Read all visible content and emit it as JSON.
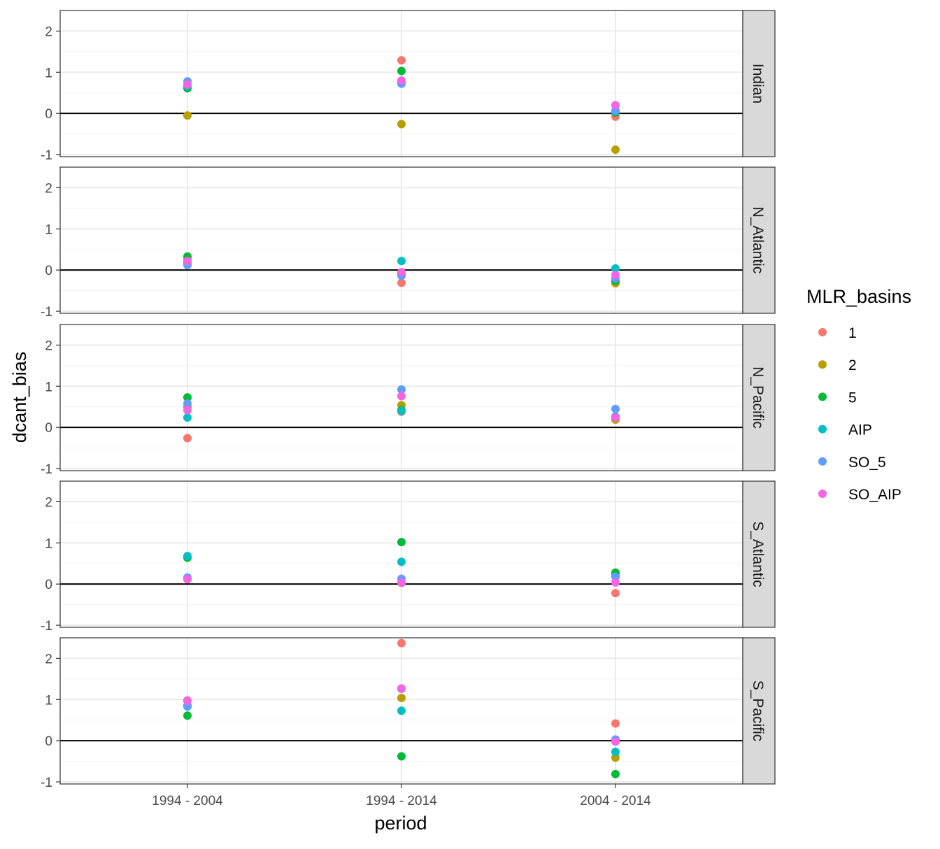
{
  "chart_data": {
    "type": "scatter",
    "xlabel": "period",
    "ylabel": "dcant_bias",
    "categories": [
      "1994 - 2004",
      "1994 - 2014",
      "2004 - 2014"
    ],
    "ylim": [
      -1,
      2.5
    ],
    "y_ticks": [
      -1,
      0,
      1,
      2
    ],
    "y_tick_labels": [
      "-1",
      "0",
      "1",
      "2"
    ],
    "reference_line_y": 0,
    "grid": true,
    "legend": {
      "title": "MLR_basins",
      "position": "right",
      "entries": [
        "1",
        "2",
        "5",
        "AIP",
        "SO_5",
        "SO_AIP"
      ]
    },
    "colors": {
      "1": "#F8766D",
      "2": "#B79F00",
      "5": "#00BA38",
      "AIP": "#00BFC4",
      "SO_5": "#619CFF",
      "SO_AIP": "#F564E3"
    },
    "facets": [
      {
        "label": "Indian",
        "series": [
          {
            "name": "1",
            "values": [
              0.68,
              1.29,
              -0.08
            ]
          },
          {
            "name": "2",
            "values": [
              -0.05,
              -0.26,
              -0.88
            ]
          },
          {
            "name": "5",
            "values": [
              0.61,
              1.03,
              0.02
            ]
          },
          {
            "name": "AIP",
            "values": [
              0.66,
              0.76,
              0.05
            ]
          },
          {
            "name": "SO_5",
            "values": [
              0.78,
              0.72,
              0.07
            ]
          },
          {
            "name": "SO_AIP",
            "values": [
              0.7,
              0.8,
              0.2
            ]
          }
        ]
      },
      {
        "label": "N_Atlantic",
        "series": [
          {
            "name": "1",
            "values": [
              0.22,
              -0.31,
              -0.3
            ]
          },
          {
            "name": "2",
            "values": [
              0.25,
              -0.12,
              -0.32
            ]
          },
          {
            "name": "5",
            "values": [
              0.33,
              -0.1,
              -0.26
            ]
          },
          {
            "name": "AIP",
            "values": [
              0.18,
              0.22,
              0.04
            ]
          },
          {
            "name": "SO_5",
            "values": [
              0.12,
              -0.14,
              -0.2
            ]
          },
          {
            "name": "SO_AIP",
            "values": [
              0.22,
              -0.05,
              -0.12
            ]
          }
        ]
      },
      {
        "label": "N_Pacific",
        "series": [
          {
            "name": "1",
            "values": [
              -0.26,
              0.38,
              0.21
            ]
          },
          {
            "name": "2",
            "values": [
              0.5,
              0.54,
              0.19
            ]
          },
          {
            "name": "5",
            "values": [
              0.73,
              0.42,
              0.26
            ]
          },
          {
            "name": "AIP",
            "values": [
              0.24,
              0.4,
              0.26
            ]
          },
          {
            "name": "SO_5",
            "values": [
              0.58,
              0.92,
              0.45
            ]
          },
          {
            "name": "SO_AIP",
            "values": [
              0.42,
              0.76,
              0.24
            ]
          }
        ]
      },
      {
        "label": "S_Atlantic",
        "series": [
          {
            "name": "1",
            "values": [
              0.12,
              0.03,
              -0.22
            ]
          },
          {
            "name": "2",
            "values": [
              0.12,
              0.03,
              0.24
            ]
          },
          {
            "name": "5",
            "values": [
              0.64,
              1.02,
              0.28
            ]
          },
          {
            "name": "AIP",
            "values": [
              0.68,
              0.54,
              0.18
            ]
          },
          {
            "name": "SO_5",
            "values": [
              0.16,
              0.13,
              0.18
            ]
          },
          {
            "name": "SO_AIP",
            "values": [
              0.12,
              0.04,
              0.04
            ]
          }
        ]
      },
      {
        "label": "S_Pacific",
        "series": [
          {
            "name": "1",
            "values": [
              0.98,
              2.37,
              0.42
            ]
          },
          {
            "name": "2",
            "values": [
              0.97,
              1.04,
              -0.41
            ]
          },
          {
            "name": "5",
            "values": [
              0.61,
              -0.38,
              -0.81
            ]
          },
          {
            "name": "AIP",
            "values": [
              0.85,
              0.73,
              -0.27
            ]
          },
          {
            "name": "SO_5",
            "values": [
              0.83,
              1.26,
              0.03
            ]
          },
          {
            "name": "SO_AIP",
            "values": [
              0.97,
              1.27,
              -0.02
            ]
          }
        ]
      }
    ]
  }
}
